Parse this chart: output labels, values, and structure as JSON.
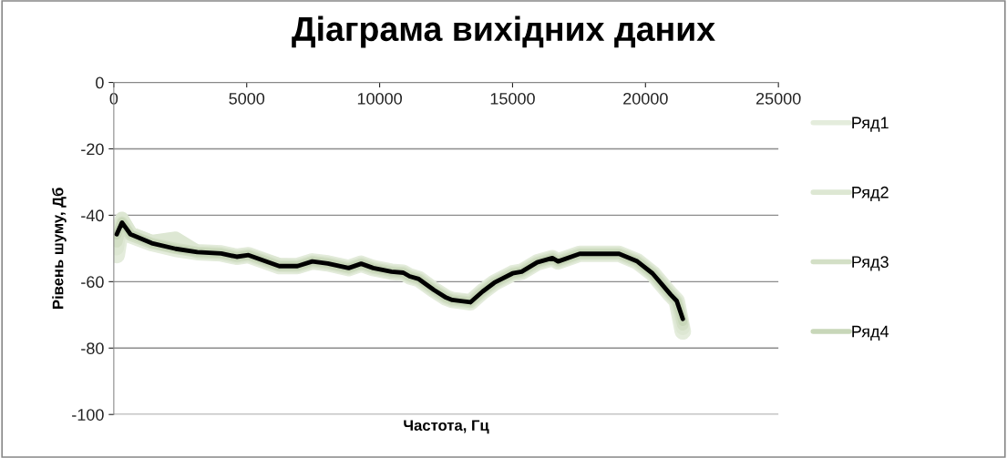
{
  "chart_data": {
    "type": "line",
    "title": "Діаграма вихідних даних",
    "xlabel": "Частота, Гц",
    "ylabel": "Рівень шуму, Дб",
    "x": [
      113,
      308,
      627,
      1428,
      2329,
      3140,
      4041,
      4623,
      5068,
      6223,
      6908,
      7466,
      8048,
      8836,
      9305,
      9760,
      10445,
      10890,
      11130,
      11473,
      12045,
      12500,
      12729,
      13414,
      13870,
      14315,
      15000,
      15342,
      15925,
      16497,
      16712,
      17524,
      18322,
      19007,
      19692,
      20264,
      20606,
      20949,
      21175,
      21404
    ],
    "series": [
      {
        "name": "Ряд1",
        "color": "#e4ecdc",
        "values": [
          -52,
          -42,
          -46,
          -48.4,
          -50.1,
          -51.1,
          -51.5,
          -52.5,
          -52,
          -55.3,
          -55.3,
          -53.9,
          -54.5,
          -55.9,
          -54.6,
          -55.9,
          -57,
          -57.3,
          -58.4,
          -59.2,
          -62.5,
          -64.8,
          -65.5,
          -66.2,
          -63,
          -60.3,
          -57.5,
          -57,
          -54.2,
          -52.9,
          -53.9,
          -51.6,
          -51.6,
          -51.6,
          -53.9,
          -57.5,
          -60.7,
          -63.9,
          -65.8,
          -75
        ]
      },
      {
        "name": "Ряд2",
        "color": "#dde7d3",
        "values": [
          -50,
          -41,
          -45.5,
          -48,
          -47,
          -51,
          -51.5,
          -52.5,
          -52,
          -55,
          -55.3,
          -54,
          -54.5,
          -55.9,
          -54.6,
          -55.9,
          -57,
          -57.3,
          -58.4,
          -59.2,
          -62.5,
          -64.8,
          -65.5,
          -66,
          -63,
          -60.3,
          -57.5,
          -57,
          -54.2,
          -52.9,
          -53.9,
          -51.6,
          -51.6,
          -51.6,
          -53.9,
          -57.5,
          -60.7,
          -63.9,
          -66,
          -74
        ]
      },
      {
        "name": "Ряд3",
        "color": "#d3dfc6",
        "values": [
          -48,
          -42,
          -46,
          -48.4,
          -50,
          -51.1,
          -51.5,
          -52.5,
          -52,
          -55.3,
          -55.3,
          -53.9,
          -54.5,
          -55.9,
          -54.6,
          -55.9,
          -57,
          -57.3,
          -58.4,
          -59.2,
          -62.5,
          -64.8,
          -65.5,
          -66.2,
          -63,
          -60.3,
          -57.5,
          -57,
          -54.2,
          -52.9,
          -53.9,
          -51.6,
          -51.6,
          -51.6,
          -53.9,
          -57.5,
          -60.7,
          -63.9,
          -65.8,
          -73
        ]
      },
      {
        "name": "Ряд4",
        "color": "#c8d7b9",
        "values": [
          -46,
          -42,
          -45.7,
          -48.4,
          -50.1,
          -51.1,
          -51.5,
          -52.5,
          -52,
          -55.3,
          -55.3,
          -53.9,
          -54.5,
          -55.9,
          -54.6,
          -55.9,
          -57,
          -57.3,
          -58.4,
          -59.2,
          -62.5,
          -64.8,
          -65.5,
          -66.2,
          -63,
          -60.3,
          -57.5,
          -57,
          -54.2,
          -52.9,
          -53.9,
          -51.6,
          -51.6,
          -51.6,
          -53.9,
          -57.5,
          -60.7,
          -63.9,
          -65.8,
          -72
        ]
      },
      {
        "color": "#000000",
        "values": [
          -45.7,
          -42.2,
          -45.7,
          -48.4,
          -50.1,
          -51.1,
          -51.5,
          -52.5,
          -52,
          -55.3,
          -55.3,
          -53.9,
          -54.5,
          -55.9,
          -54.6,
          -55.9,
          -57,
          -57.3,
          -58.4,
          -59.2,
          -62.5,
          -64.8,
          -65.5,
          -66.2,
          -63,
          -60.3,
          -57.5,
          -57,
          -54.2,
          -52.9,
          -53.9,
          -51.6,
          -51.6,
          -51.6,
          -53.9,
          -57.5,
          -60.7,
          -63.9,
          -65.8,
          -71.2
        ]
      }
    ],
    "xlim": [
      0,
      25000
    ],
    "xticks": [
      0,
      5000,
      10000,
      15000,
      20000,
      25000
    ],
    "ylim": [
      -100,
      0
    ],
    "yticks": [
      -100,
      -80,
      -60,
      -40,
      -20,
      0
    ],
    "grid": "y",
    "legend": "right"
  }
}
